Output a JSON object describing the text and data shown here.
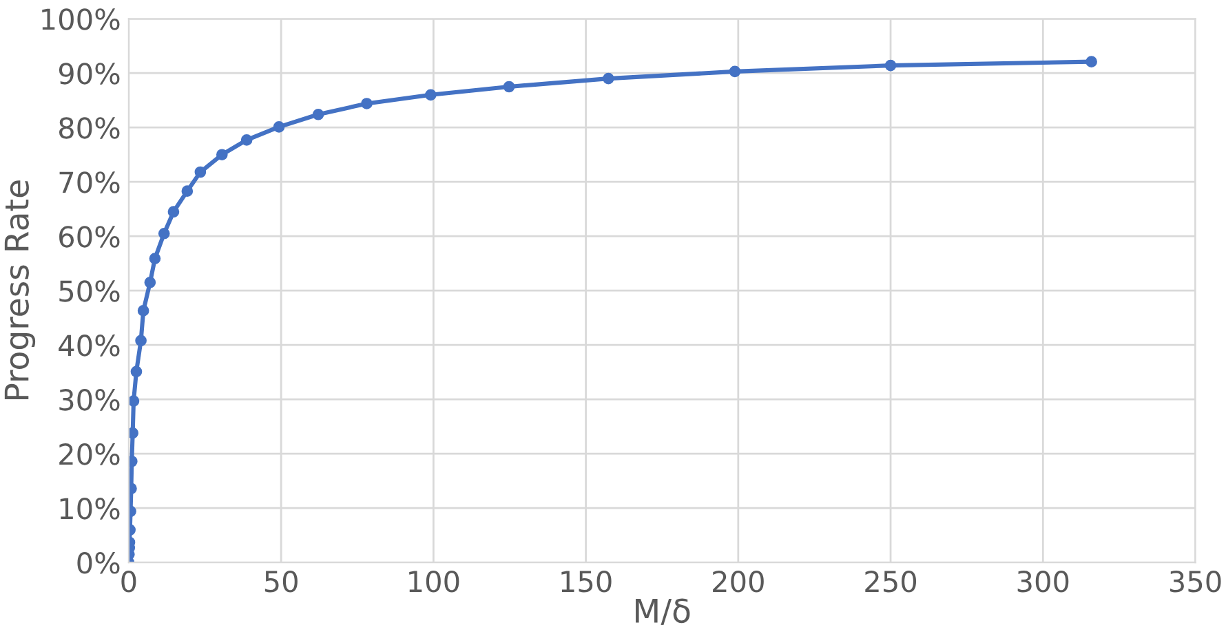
{
  "chart_data": {
    "type": "line",
    "xlabel": "M/δ",
    "ylabel": "Progress Rate",
    "xlim": [
      0,
      350
    ],
    "xticks": [
      0,
      50,
      100,
      150,
      200,
      250,
      300,
      350
    ],
    "ylim": [
      0,
      100
    ],
    "yticks": [
      {
        "value": 0,
        "label": "0%"
      },
      {
        "value": 10,
        "label": "10%"
      },
      {
        "value": 20,
        "label": "20%"
      },
      {
        "value": 30,
        "label": "30%"
      },
      {
        "value": 40,
        "label": "40%"
      },
      {
        "value": 50,
        "label": "50%"
      },
      {
        "value": 60,
        "label": "60%"
      },
      {
        "value": 70,
        "label": "70%"
      },
      {
        "value": 80,
        "label": "80%"
      },
      {
        "value": 90,
        "label": "90%"
      },
      {
        "value": 100,
        "label": "100%"
      }
    ],
    "grid": true,
    "marker": "circle",
    "line_style": "solid",
    "series": [
      {
        "color": "#4472c4",
        "x": [
          0,
          0.1,
          0.2,
          0.25,
          0.4,
          0.6,
          0.8,
          1.0,
          1.3,
          1.6,
          2.5,
          4,
          4.8,
          7,
          8.6,
          11.6,
          14.7,
          19.2,
          23.5,
          30.6,
          38.7,
          49.3,
          62.2,
          78.1,
          99.1,
          124.8,
          157.4,
          198.9,
          250,
          315.9
        ],
        "values": [
          0,
          1.5,
          2.7,
          3.7,
          6,
          9.4,
          13.6,
          18.6,
          23.8,
          29.7,
          35.1,
          40.8,
          46.3,
          51.5,
          55.9,
          60.5,
          64.5,
          68.3,
          71.8,
          75,
          77.7,
          80.1,
          82.4,
          84.4,
          86,
          87.5,
          89,
          90.3,
          91.4,
          92.1
        ]
      }
    ]
  }
}
